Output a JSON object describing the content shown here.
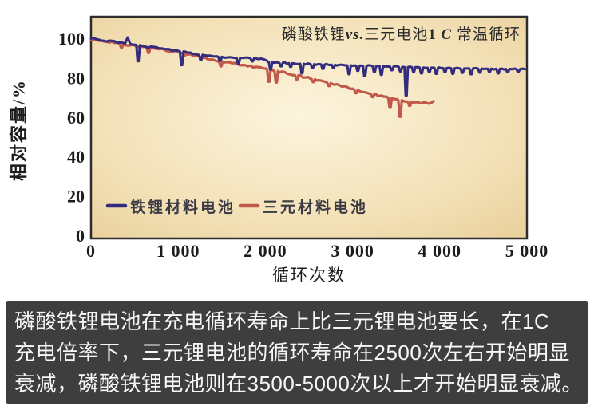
{
  "page": {
    "background": "#ffffff"
  },
  "chart_data": {
    "type": "line",
    "title_plain": "磷酸铁锂vs.三元电池1 C 常温循环",
    "title_parts": [
      {
        "text": "磷酸铁锂",
        "b": false,
        "i": false
      },
      {
        "text": "vs.",
        "b": true,
        "i": true
      },
      {
        "text": "三元电池",
        "b": false,
        "i": false
      },
      {
        "text": "1 ",
        "b": true,
        "i": false
      },
      {
        "text": "C",
        "b": true,
        "i": true
      },
      {
        "text": " 常温循环",
        "b": false,
        "i": false
      }
    ],
    "xlabel": "循环次数",
    "ylabel": "相对容量/%",
    "xlim": [
      0,
      5000
    ],
    "ylim": [
      0,
      112
    ],
    "grid": false,
    "legend_position": "inside-bottom-left",
    "xticks": [
      {
        "value": 0,
        "label": "0"
      },
      {
        "value": 1000,
        "label": "1 000"
      },
      {
        "value": 2000,
        "label": "2 000"
      },
      {
        "value": 3000,
        "label": "3 000"
      },
      {
        "value": 4000,
        "label": "4 000"
      },
      {
        "value": 5000,
        "label": "5 000"
      }
    ],
    "yticks": [
      {
        "value": 100,
        "label": "100"
      },
      {
        "value": 80,
        "label": "80"
      },
      {
        "value": 60,
        "label": "60"
      },
      {
        "value": 40,
        "label": "40"
      },
      {
        "value": 20,
        "label": "20"
      },
      {
        "value": 0,
        "label": "0"
      }
    ],
    "plot_bg": {
      "center": "#fcf4dd",
      "mid": "#f4e3bb",
      "edge": "#e9cf99"
    },
    "frame_color": "#2d2d2d",
    "text_color": "#1c1c1c",
    "legend_text_color": "#3a3a44",
    "legend": [
      {
        "label": "铁锂材料电池",
        "color": "#322b7e"
      },
      {
        "label": "三元材料电池",
        "color": "#c2584a"
      }
    ],
    "series": [
      {
        "name": "三元材料电池",
        "key": "ncm",
        "color": "#c2584a",
        "width": 3.2,
        "jitter": 0.45,
        "anchors": [
          [
            0,
            99.8
          ],
          [
            200,
            98.2
          ],
          [
            400,
            96.8
          ],
          [
            600,
            95.6
          ],
          [
            800,
            94.3
          ],
          [
            1000,
            93.0
          ],
          [
            1200,
            91.2
          ],
          [
            1300,
            89.8
          ],
          [
            1400,
            88.9
          ],
          [
            1500,
            88.1
          ],
          [
            1600,
            87.4
          ],
          [
            1700,
            86.7
          ],
          [
            1800,
            86.0
          ],
          [
            1900,
            85.3
          ],
          [
            2000,
            84.5
          ],
          [
            2100,
            83.6
          ],
          [
            2200,
            82.7
          ],
          [
            2300,
            81.8
          ],
          [
            2400,
            80.8
          ],
          [
            2500,
            79.8
          ],
          [
            2600,
            78.7
          ],
          [
            2700,
            77.6
          ],
          [
            2800,
            76.5
          ],
          [
            2900,
            75.4
          ],
          [
            3000,
            74.3
          ],
          [
            3100,
            73.2
          ],
          [
            3200,
            72.0
          ],
          [
            3300,
            70.9
          ],
          [
            3400,
            69.9
          ],
          [
            3500,
            68.9
          ],
          [
            3600,
            68.1
          ],
          [
            3700,
            67.6
          ],
          [
            3800,
            67.3
          ],
          [
            3870,
            67.2
          ],
          [
            3930,
            67.7
          ]
        ],
        "dips": [
          [
            350,
            95.3
          ],
          [
            660,
            92.6
          ],
          [
            1070,
            91.0
          ],
          [
            1490,
            85.8
          ],
          [
            2040,
            78.0
          ],
          [
            2125,
            77.6
          ],
          [
            2360,
            79.2
          ],
          [
            2550,
            77.8
          ],
          [
            2730,
            75.8
          ],
          [
            3040,
            72.2
          ],
          [
            3230,
            70.2
          ],
          [
            3430,
            64.8
          ],
          [
            3545,
            60.2
          ],
          [
            3655,
            65.8
          ]
        ]
      },
      {
        "name": "铁锂材料电池",
        "key": "lfp",
        "color": "#322b7e",
        "width": 3.0,
        "jitter": 0.38,
        "anchors": [
          [
            0,
            100.2
          ],
          [
            80,
            99.4
          ],
          [
            160,
            98.8
          ],
          [
            240,
            98.3
          ],
          [
            320,
            97.8
          ],
          [
            400,
            97.6
          ],
          [
            415,
            101.3
          ],
          [
            430,
            97.5
          ],
          [
            520,
            96.6
          ],
          [
            600,
            96.0
          ],
          [
            700,
            95.4
          ],
          [
            800,
            94.9
          ],
          [
            900,
            94.2
          ],
          [
            1000,
            93.6
          ],
          [
            1100,
            92.8
          ],
          [
            1200,
            92.0
          ],
          [
            1300,
            91.3
          ],
          [
            1400,
            90.8
          ],
          [
            1500,
            90.5
          ],
          [
            1600,
            90.2
          ],
          [
            1700,
            90.0
          ],
          [
            1800,
            89.9
          ],
          [
            1900,
            89.7
          ],
          [
            1995,
            89.5
          ],
          [
            2015,
            88.0
          ],
          [
            2100,
            87.7
          ],
          [
            2200,
            87.5
          ],
          [
            2300,
            87.3
          ],
          [
            2400,
            87.1
          ],
          [
            2500,
            86.9
          ],
          [
            2600,
            86.8
          ],
          [
            2700,
            86.6
          ],
          [
            2800,
            86.5
          ],
          [
            2900,
            86.3
          ],
          [
            3000,
            86.2
          ],
          [
            3100,
            86.0
          ],
          [
            3200,
            85.9
          ],
          [
            3300,
            85.8
          ],
          [
            3400,
            85.7
          ],
          [
            3500,
            85.5
          ],
          [
            3600,
            85.4
          ],
          [
            3700,
            85.3
          ],
          [
            3800,
            85.1
          ],
          [
            3900,
            85.0
          ],
          [
            4000,
            84.9
          ],
          [
            4200,
            84.7
          ],
          [
            4400,
            84.6
          ],
          [
            4600,
            84.5
          ],
          [
            4800,
            84.4
          ],
          [
            5000,
            84.3
          ]
        ],
        "dips": [
          [
            540,
            88.4
          ],
          [
            1040,
            86.4
          ],
          [
            1260,
            89.0
          ],
          [
            1480,
            88.5
          ],
          [
            1690,
            87.0
          ],
          [
            1850,
            88.3
          ],
          [
            2060,
            84.2
          ],
          [
            2180,
            85.8
          ],
          [
            2290,
            85.5
          ],
          [
            2420,
            82.3
          ],
          [
            2540,
            84.8
          ],
          [
            2660,
            84.5
          ],
          [
            2780,
            85.0
          ],
          [
            2960,
            81.8
          ],
          [
            3060,
            83.5
          ],
          [
            3140,
            80.8
          ],
          [
            3250,
            83.0
          ],
          [
            3330,
            81.5
          ],
          [
            3450,
            83.8
          ],
          [
            3550,
            83.2
          ],
          [
            3615,
            71.0
          ],
          [
            3700,
            83.0
          ],
          [
            3790,
            82.2
          ],
          [
            3880,
            83.0
          ],
          [
            3960,
            82.0
          ],
          [
            4060,
            82.8
          ],
          [
            4150,
            82.0
          ],
          [
            4260,
            82.5
          ],
          [
            4360,
            81.8
          ],
          [
            4460,
            82.6
          ],
          [
            4570,
            83.0
          ],
          [
            4670,
            82.2
          ],
          [
            4780,
            82.8
          ],
          [
            4900,
            83.0
          ]
        ]
      }
    ]
  },
  "caption": {
    "bg": "#3e3e3e",
    "color": "#f7f7f7",
    "lines": [
      "磷酸铁锂电池在充电循环寿命上比三元锂电池要长，在1C",
      "充电倍率下，三元锂电池的循环寿命在2500次左右开始明显",
      "衰减，磷酸铁锂电池则在3500-5000次以上才开始明显衰减。"
    ]
  }
}
